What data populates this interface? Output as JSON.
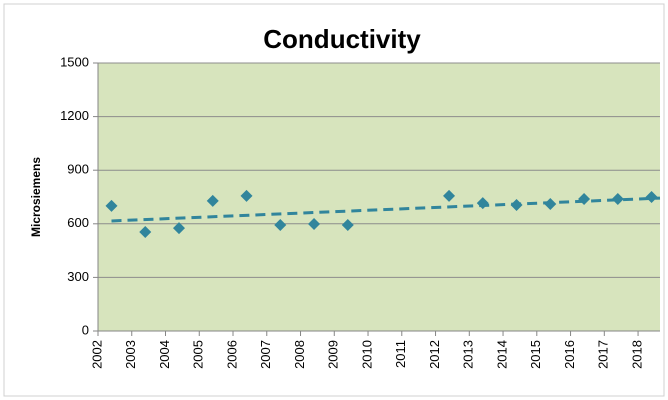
{
  "chart_data": {
    "type": "scatter",
    "title": "Conductivity",
    "ylabel": "Microsiemens",
    "x": [
      2002.4,
      2003.4,
      2004.4,
      2005.4,
      2006.4,
      2007.4,
      2008.4,
      2009.4,
      2012.4,
      2013.4,
      2014.4,
      2015.4,
      2016.4,
      2017.4,
      2018.4
    ],
    "values": [
      700,
      554,
      576,
      728,
      756,
      593,
      599,
      593,
      756,
      716,
      705,
      711,
      739,
      739,
      750
    ],
    "color": "#31859c",
    "trendline": {
      "x": [
        2002.4,
        2018.65
      ],
      "values": [
        616,
        744
      ]
    },
    "xlim": [
      2002,
      2018.65
    ],
    "xticks": [
      2002,
      2003,
      2004,
      2005,
      2006,
      2007,
      2008,
      2009,
      2010,
      2011,
      2012,
      2013,
      2014,
      2015,
      2016,
      2017,
      2018
    ],
    "ylim": [
      0,
      1500
    ],
    "yticks": [
      0,
      300,
      600,
      900,
      1200,
      1500
    ],
    "grid": true,
    "plot_background": "#d7e4bd"
  }
}
